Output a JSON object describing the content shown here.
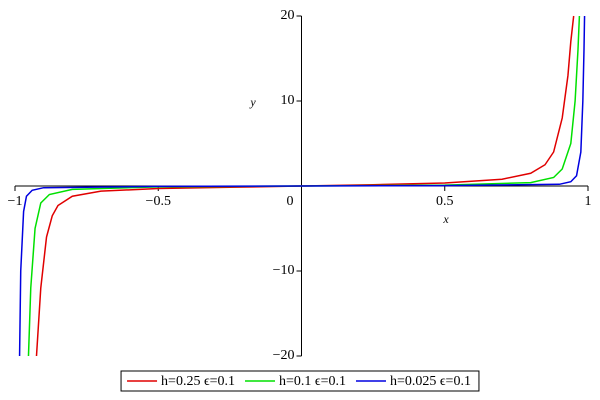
{
  "chart_data": {
    "type": "line",
    "xlabel": "x",
    "ylabel": "y",
    "xlim": [
      -1,
      1
    ],
    "ylim": [
      -20,
      20
    ],
    "xticks": [
      {
        "value": -1,
        "label": "−1"
      },
      {
        "value": -0.5,
        "label": "−0.5"
      },
      0,
      0.5,
      1
    ],
    "yticks": [
      {
        "value": -20,
        "label": "−20"
      },
      {
        "value": -10,
        "label": "−10"
      },
      10,
      20
    ],
    "grid": false,
    "legend": "bottom",
    "series": [
      {
        "name": "h=0.25 ϵ=0.1",
        "color": "#e00000",
        "x": [
          -0.925,
          -0.91,
          -0.89,
          -0.87,
          -0.85,
          -0.8,
          -0.7,
          -0.5,
          -0.25,
          0,
          0.25,
          0.5,
          0.7,
          0.8,
          0.85,
          0.88,
          0.91,
          0.93,
          0.94,
          0.95
        ],
        "values": [
          -20,
          -12,
          -6,
          -3.5,
          -2.3,
          -1.2,
          -0.6,
          -0.3,
          -0.15,
          0,
          0.15,
          0.35,
          0.8,
          1.5,
          2.5,
          4,
          8,
          13,
          17,
          20
        ]
      },
      {
        "name": "h=0.1 ϵ=0.1",
        "color": "#00e000",
        "x": [
          -0.953,
          -0.945,
          -0.93,
          -0.91,
          -0.88,
          -0.8,
          -0.5,
          0,
          0.5,
          0.8,
          0.88,
          0.91,
          0.94,
          0.955,
          0.965,
          0.97
        ],
        "values": [
          -20,
          -12,
          -5,
          -2,
          -1,
          -0.4,
          -0.1,
          0,
          0.1,
          0.4,
          1,
          2,
          5,
          10,
          16,
          20
        ]
      },
      {
        "name": "h=0.025 ϵ=0.1",
        "color": "#0000e0",
        "x": [
          -0.984,
          -0.98,
          -0.97,
          -0.96,
          -0.94,
          -0.9,
          -0.5,
          0,
          0.5,
          0.9,
          0.94,
          0.96,
          0.975,
          0.982,
          0.986,
          0.988
        ],
        "values": [
          -20,
          -10,
          -3,
          -1.2,
          -0.5,
          -0.2,
          -0.05,
          0,
          0.05,
          0.2,
          0.5,
          1.2,
          4,
          10,
          16,
          20
        ]
      }
    ]
  }
}
